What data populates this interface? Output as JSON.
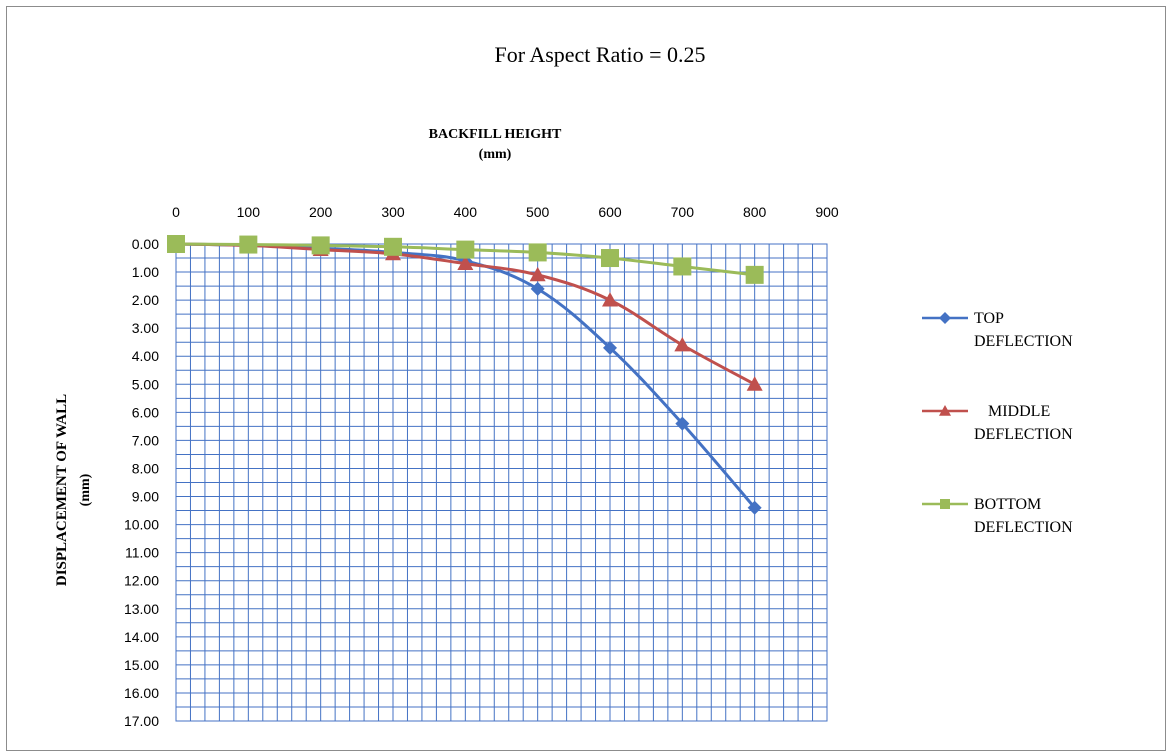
{
  "chart_data": {
    "type": "line",
    "title": "For Aspect Ratio = 0.25",
    "xlabel": [
      "BACKFILL HEIGHT",
      "(mm)"
    ],
    "ylabel": [
      "DISPLACEMENT OF WALL",
      "(mm)"
    ],
    "xlim": [
      0,
      900
    ],
    "ylim": [
      0,
      17
    ],
    "y_inverted": true,
    "x_axis_position": "top",
    "x_ticks": [
      "0",
      "100",
      "200",
      "300",
      "400",
      "500",
      "600",
      "700",
      "800",
      "900"
    ],
    "y_ticks": [
      "0.00",
      "1.00",
      "2.00",
      "3.00",
      "4.00",
      "5.00",
      "6.00",
      "7.00",
      "8.00",
      "9.00",
      "10.00",
      "11.00",
      "12.00",
      "13.00",
      "14.00",
      "15.00",
      "16.00",
      "17.00"
    ],
    "grid": true,
    "legend_position": "right",
    "x": [
      0,
      100,
      200,
      300,
      400,
      500,
      600,
      700,
      800
    ],
    "series": [
      {
        "name": "TOP DEFLECTION",
        "legend_lines": [
          "TOP",
          "DEFLECTION"
        ],
        "color": "#4472C4",
        "marker": "diamond",
        "values": [
          0.0,
          0.05,
          0.15,
          0.3,
          0.6,
          1.6,
          3.7,
          6.4,
          9.4
        ]
      },
      {
        "name": "MIDDLE DEFLECTION",
        "legend_lines": [
          "MIDDLE",
          "DEFLECTION"
        ],
        "color": "#C0504D",
        "marker": "triangle",
        "values": [
          0.0,
          0.05,
          0.2,
          0.35,
          0.7,
          1.1,
          2.0,
          3.6,
          5.0
        ]
      },
      {
        "name": "BOTTOM DEFLECTION",
        "legend_lines": [
          "BOTTOM",
          "DEFLECTION"
        ],
        "color": "#9BBB59",
        "marker": "square",
        "values": [
          0.0,
          0.02,
          0.05,
          0.1,
          0.2,
          0.3,
          0.5,
          0.8,
          1.1
        ]
      }
    ]
  }
}
